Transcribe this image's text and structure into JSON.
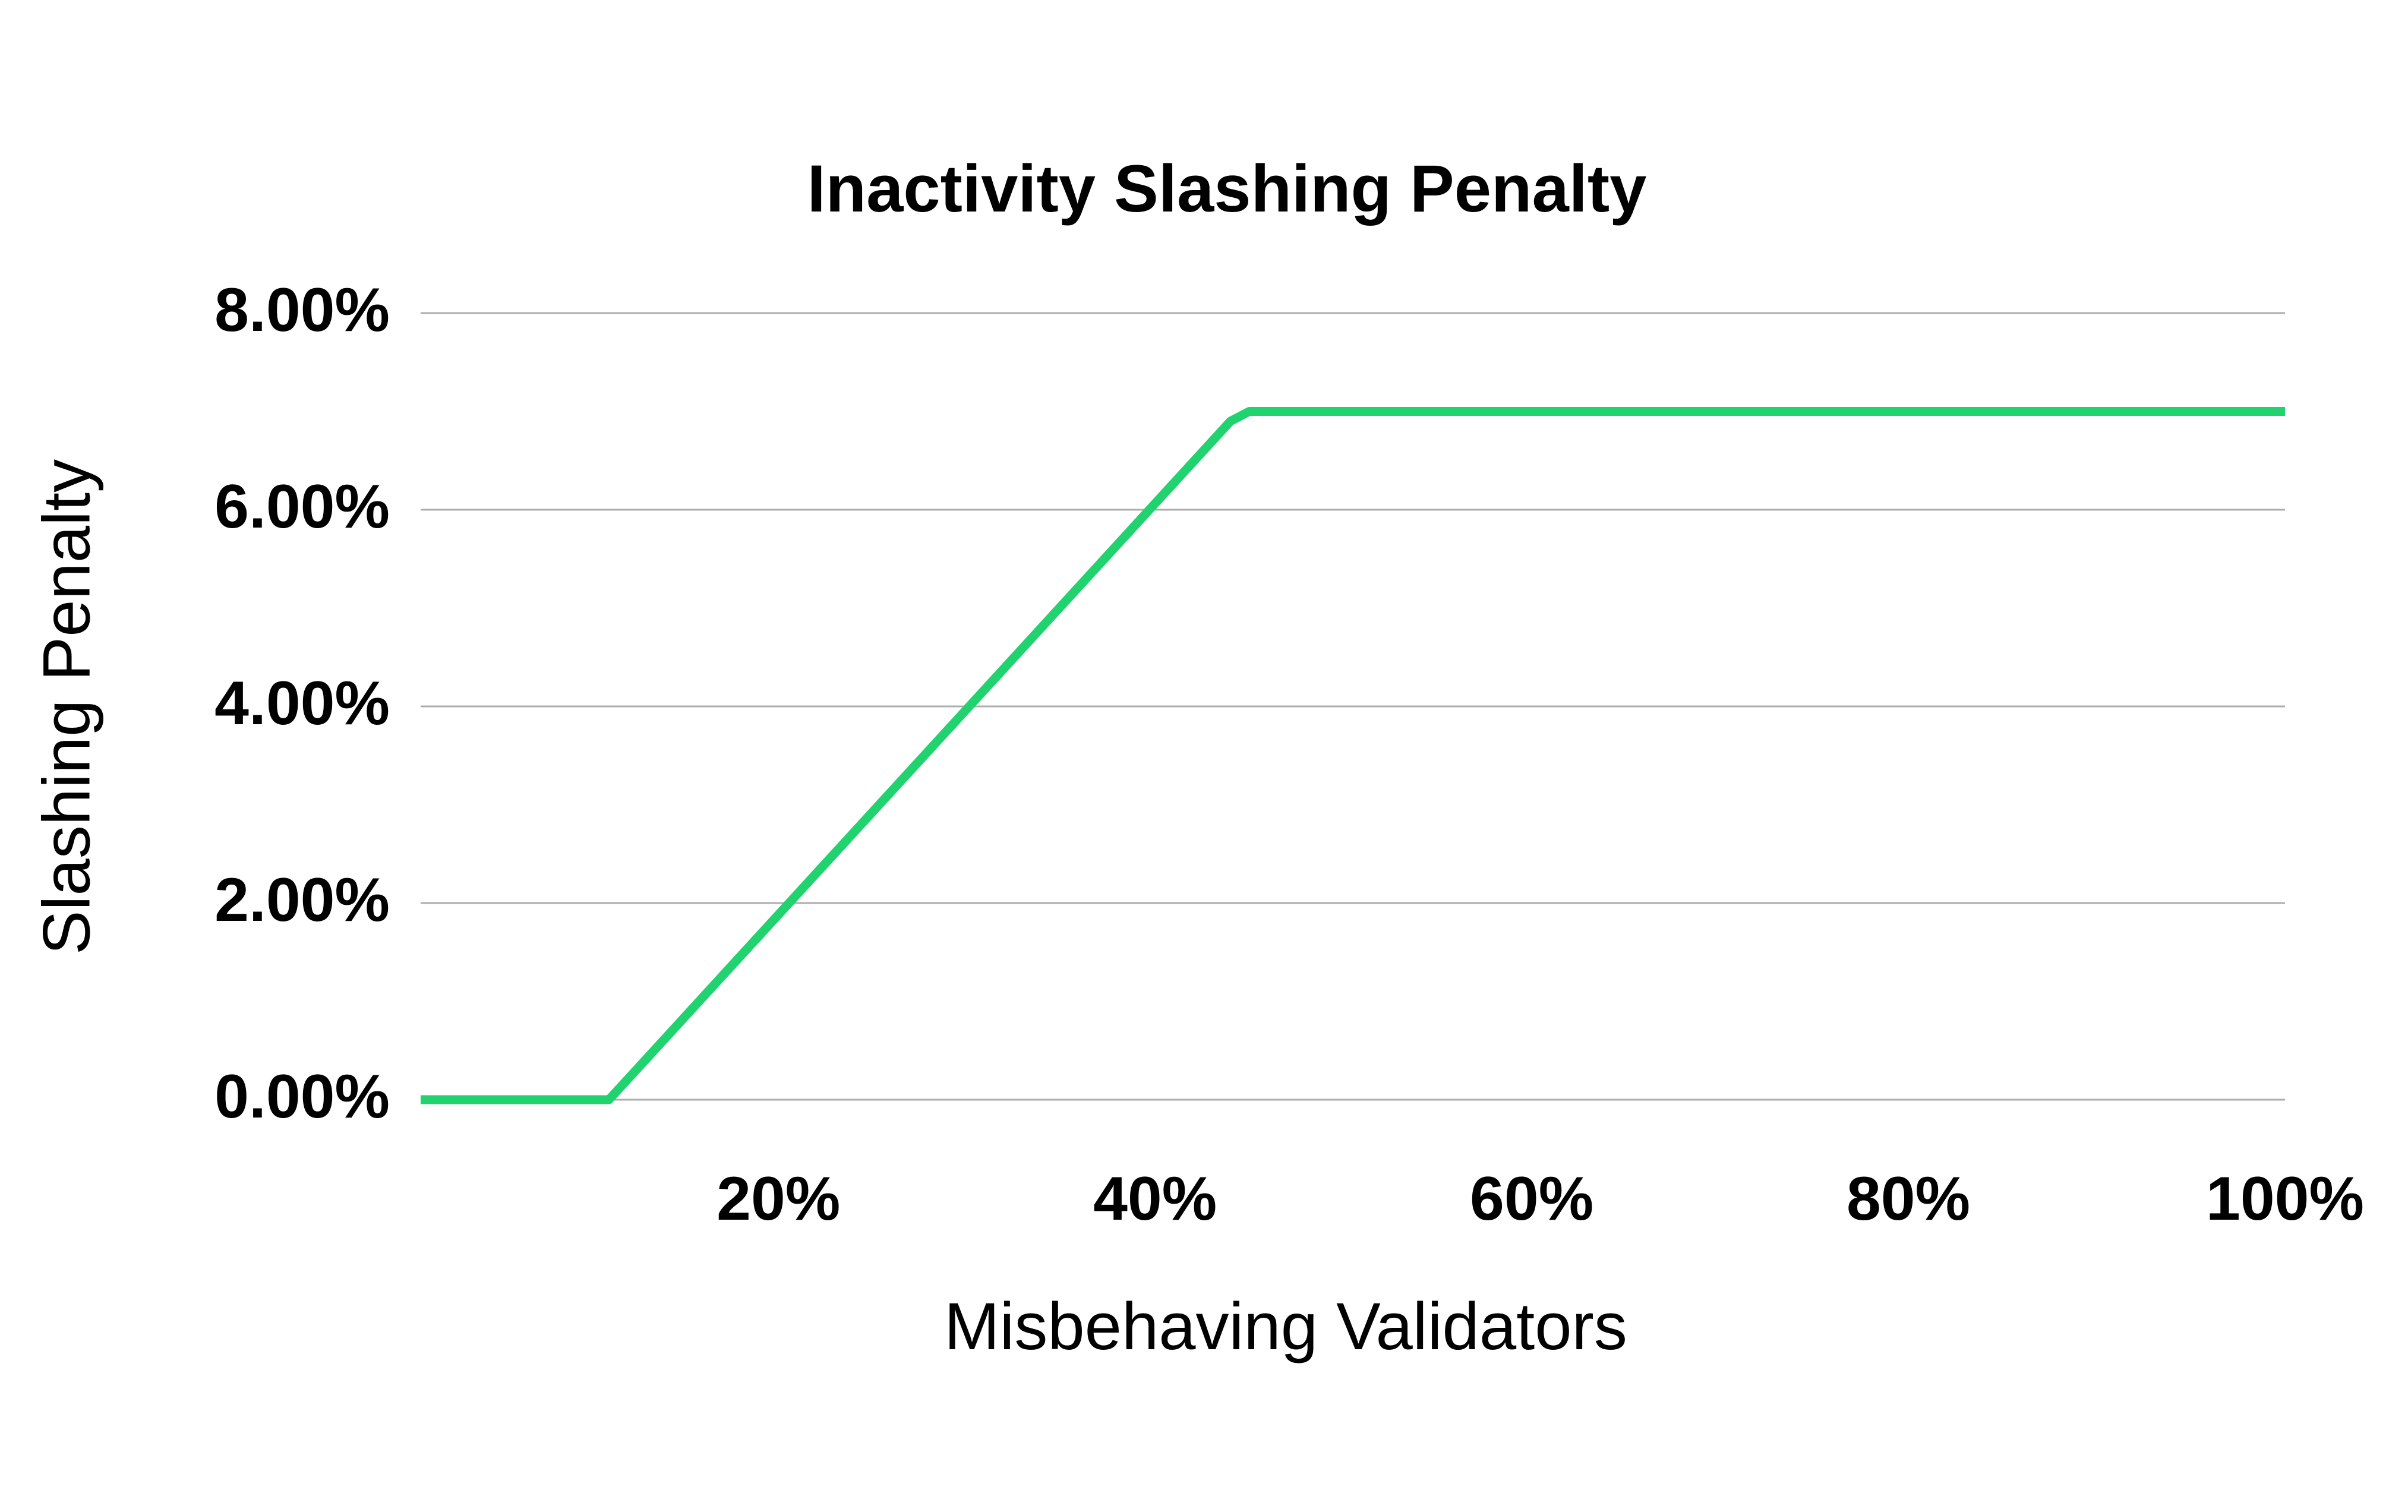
{
  "chart_data": {
    "type": "line",
    "title": "Inactivity Slashing Penalty",
    "xlabel": "Misbehaving Validators",
    "ylabel": "Slashing Penalty",
    "x_range": [
      1,
      100
    ],
    "y_range": [
      0,
      8
    ],
    "x_ticks": [
      {
        "value": 20,
        "label": "20%"
      },
      {
        "value": 40,
        "label": "40%"
      },
      {
        "value": 60,
        "label": "60%"
      },
      {
        "value": 80,
        "label": "80%"
      },
      {
        "value": 100,
        "label": "100%"
      }
    ],
    "y_ticks": [
      {
        "value": 0,
        "label": "0.00%"
      },
      {
        "value": 2,
        "label": "2.00%"
      },
      {
        "value": 4,
        "label": "4.00%"
      },
      {
        "value": 6,
        "label": "6.00%"
      },
      {
        "value": 8,
        "label": "8.00%"
      }
    ],
    "grid": "horizontal-only",
    "legend": "none",
    "series": [
      {
        "name": "Slashing Penalty",
        "color": "#21D36E",
        "points": [
          [
            1,
            0
          ],
          [
            11,
            0
          ],
          [
            44,
            6.9
          ],
          [
            45,
            7
          ],
          [
            100,
            7
          ]
        ]
      }
    ],
    "colors": {
      "line": "#21D36E",
      "gridline": "#ADADAD",
      "text": "#000000",
      "background": "#FFFFFF"
    }
  }
}
